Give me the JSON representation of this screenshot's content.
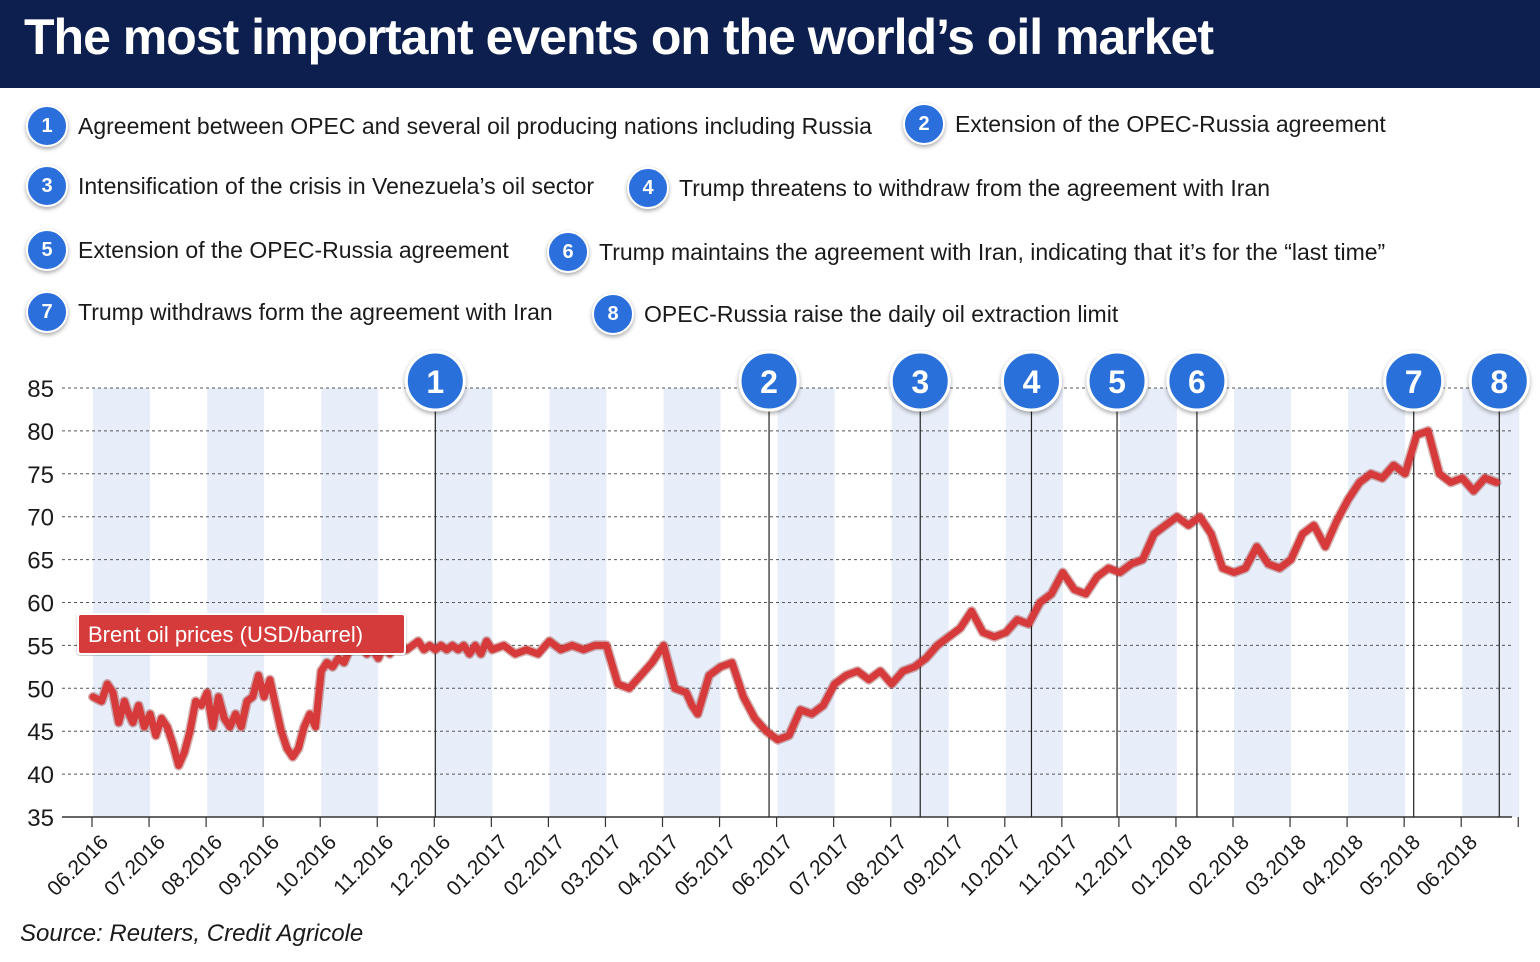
{
  "title": "The most important events on the world’s oil market",
  "source": "Source: Reuters, Credit Agricole",
  "series_label": "Brent oil prices (USD/barrel)",
  "colors": {
    "header": "#0d1f4e",
    "line": "#d63a3a",
    "badge": "#2a6fdb",
    "stripe": "#e8eef9"
  },
  "events": [
    {
      "num": "1",
      "text": "Agreement between OPEC and several oil producing nations including Russia"
    },
    {
      "num": "2",
      "text": "Extension of the OPEC-Russia agreement"
    },
    {
      "num": "3",
      "text": "Intensification of the crisis in Venezuela’s oil sector"
    },
    {
      "num": "4",
      "text": "Trump threatens to withdraw from the agreement with Iran"
    },
    {
      "num": "5",
      "text": "Extension of the OPEC-Russia agreement"
    },
    {
      "num": "6",
      "text": "Trump maintains the agreement with Iran, indicating that it’s for the “last time”"
    },
    {
      "num": "7",
      "text": "Trump withdraws form the agreement with Iran"
    },
    {
      "num": "8",
      "text": "OPEC-Russia raise the daily oil extraction limit"
    }
  ],
  "chart_data": {
    "type": "line",
    "ylim": [
      35,
      85
    ],
    "yticks": [
      "35",
      "40",
      "45",
      "50",
      "55",
      "60",
      "65",
      "70",
      "75",
      "80",
      "85"
    ],
    "categories": [
      "06.2016",
      "07.2016",
      "08.2016",
      "09.2016",
      "10.2016",
      "11.2016",
      "12.2016",
      "01.2017",
      "02.2017",
      "03.2017",
      "04.2017",
      "05.2017",
      "06.2017",
      "07.2017",
      "08.2017",
      "09.2017",
      "10.2017",
      "11.2017",
      "12.2017",
      "01.2018",
      "02.2018",
      "03.2018",
      "04.2018",
      "05.2018",
      "06.2018"
    ],
    "grid": true,
    "event_markers": [
      {
        "label": "1",
        "x": 6.0
      },
      {
        "label": "2",
        "x": 11.85
      },
      {
        "label": "3",
        "x": 14.5
      },
      {
        "label": "4",
        "x": 16.45
      },
      {
        "label": "5",
        "x": 17.95
      },
      {
        "label": "6",
        "x": 19.35
      },
      {
        "label": "7",
        "x": 23.15
      },
      {
        "label": "8",
        "x": 24.65
      }
    ],
    "series": [
      {
        "x": [
          0,
          0.15,
          0.25,
          0.35,
          0.45,
          0.55,
          0.6,
          0.7,
          0.8,
          0.9,
          1.0,
          1.1,
          1.2,
          1.3,
          1.4,
          1.5,
          1.6,
          1.7,
          1.8,
          1.9,
          2.0,
          2.1,
          2.2,
          2.3,
          2.4,
          2.5,
          2.6,
          2.7,
          2.8,
          2.9,
          3.0,
          3.1,
          3.2,
          3.3,
          3.4,
          3.5,
          3.6,
          3.7,
          3.8,
          3.9,
          4.0,
          4.1,
          4.2,
          4.3,
          4.4,
          4.5,
          4.6,
          4.7,
          4.8,
          4.9,
          5.0,
          5.1,
          5.2,
          5.3,
          5.4,
          5.5,
          5.6,
          5.7,
          5.8,
          5.9,
          6.0,
          6.1,
          6.2,
          6.3,
          6.4,
          6.5,
          6.6,
          6.7,
          6.8,
          6.9,
          7.0,
          7.2,
          7.4,
          7.6,
          7.8,
          8.0,
          8.2,
          8.4,
          8.6,
          8.8,
          9.0,
          9.2,
          9.4,
          9.6,
          9.8,
          10.0,
          10.2,
          10.4,
          10.5,
          10.6,
          10.8,
          11.0,
          11.2,
          11.4,
          11.6,
          11.8,
          12.0,
          12.2,
          12.4,
          12.6,
          12.8,
          13.0,
          13.2,
          13.4,
          13.6,
          13.8,
          14.0,
          14.2,
          14.4,
          14.6,
          14.8,
          15.0,
          15.2,
          15.4,
          15.6,
          15.8,
          16.0,
          16.2,
          16.4,
          16.6,
          16.8,
          17.0,
          17.2,
          17.4,
          17.6,
          17.8,
          18.0,
          18.2,
          18.4,
          18.6,
          18.8,
          19.0,
          19.2,
          19.4,
          19.6,
          19.8,
          20.0,
          20.2,
          20.4,
          20.6,
          20.8,
          21.0,
          21.2,
          21.4,
          21.6,
          21.8,
          22.0,
          22.2,
          22.4,
          22.6,
          22.8,
          23.0,
          23.2,
          23.4,
          23.6,
          23.8,
          24.0,
          24.2,
          24.4,
          24.6
        ],
        "values": [
          49,
          48.5,
          50.5,
          49.5,
          46,
          48.5,
          47.5,
          46,
          48,
          45.5,
          47,
          44.5,
          46.5,
          45.5,
          43.5,
          41,
          42.5,
          45,
          48.5,
          48,
          49.5,
          45.5,
          49,
          46.5,
          45.5,
          47,
          45.5,
          48.5,
          49,
          51.5,
          49,
          51,
          48,
          45,
          43,
          42,
          43,
          45.5,
          47,
          45.5,
          52,
          53,
          52.5,
          53.5,
          53,
          54.5,
          54.5,
          55.5,
          54,
          54.5,
          53.5,
          55,
          54,
          55.5,
          55,
          54.5,
          55,
          55.5,
          54.5,
          55,
          54.5,
          55,
          54.5,
          55,
          54.5,
          55,
          54,
          55,
          54,
          55.5,
          54.5,
          55,
          54,
          54.5,
          54,
          55.5,
          54.5,
          55,
          54.5,
          55,
          55,
          50.5,
          50,
          51.5,
          53,
          55,
          50,
          49.5,
          48,
          47,
          51.5,
          52.5,
          53,
          49,
          46.5,
          45,
          44,
          44.5,
          47.5,
          47,
          48,
          50.5,
          51.5,
          52,
          51,
          52,
          50.5,
          52,
          52.5,
          53.5,
          55,
          56,
          57,
          59,
          56.5,
          56,
          56.5,
          58,
          57.5,
          60,
          61,
          63.5,
          61.5,
          61,
          63,
          64,
          63.5,
          64.5,
          65,
          68,
          69,
          70,
          69,
          70,
          68,
          64,
          63.5,
          64,
          66.5,
          64.5,
          64,
          65,
          68,
          69,
          66.5,
          69.5,
          72,
          74,
          75,
          74.5,
          76,
          75,
          79.5,
          80,
          75,
          74,
          74.5,
          73,
          74.5,
          74
        ],
        "note": "x is fractional month index from 06.2016"
      }
    ]
  }
}
